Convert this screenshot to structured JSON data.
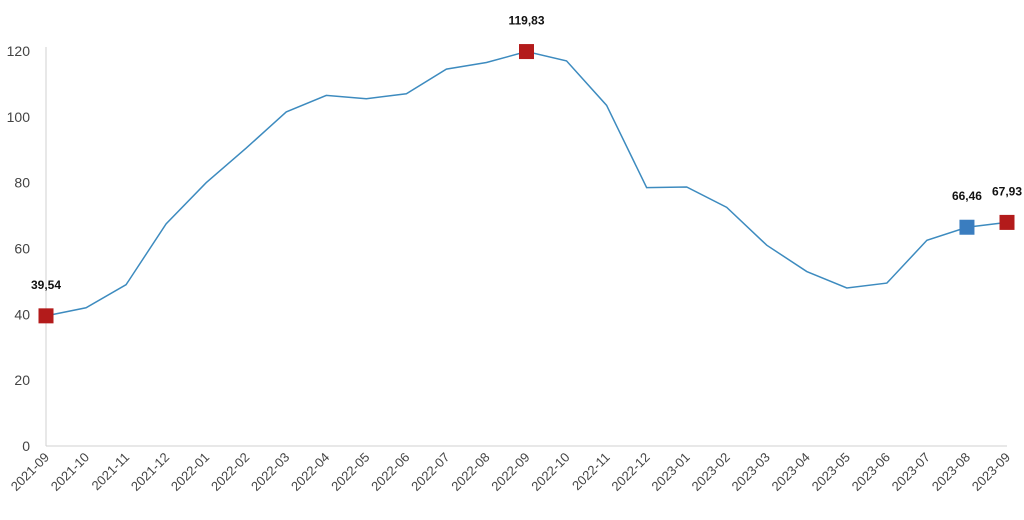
{
  "chart_data": {
    "type": "line",
    "title": "",
    "xlabel": "",
    "ylabel": "",
    "ylim": [
      0,
      120
    ],
    "yticks": [
      0,
      20,
      40,
      60,
      80,
      100,
      120
    ],
    "grid": false,
    "x": [
      "2021-09",
      "2021-10",
      "2021-11",
      "2021-12",
      "2022-01",
      "2022-02",
      "2022-03",
      "2022-04",
      "2022-05",
      "2022-06",
      "2022-07",
      "2022-08",
      "2022-09",
      "2022-10",
      "2022-11",
      "2022-12",
      "2023-01",
      "2023-02",
      "2023-03",
      "2023-04",
      "2023-05",
      "2023-06",
      "2023-07",
      "2023-08",
      "2023-09"
    ],
    "series": [
      {
        "values": [
          39.54,
          42,
          49,
          67.5,
          80,
          90.5,
          101.5,
          106.5,
          105.5,
          107,
          114.5,
          116.5,
          119.83,
          117,
          103.5,
          78.5,
          78.7,
          72.5,
          61,
          53,
          48,
          49.5,
          62.5,
          66.46,
          67.93
        ],
        "color": "#3d8bbf"
      }
    ],
    "highlights": [
      {
        "x": "2021-09",
        "value": 39.54,
        "label": "39,54",
        "color": "#b31b1b"
      },
      {
        "x": "2022-09",
        "value": 119.83,
        "label": "119,83",
        "color": "#b31b1b"
      },
      {
        "x": "2023-08",
        "value": 66.46,
        "label": "66,46",
        "color": "#3a7dbf"
      },
      {
        "x": "2023-09",
        "value": 67.93,
        "label": "67,93",
        "color": "#b31b1b"
      }
    ]
  }
}
